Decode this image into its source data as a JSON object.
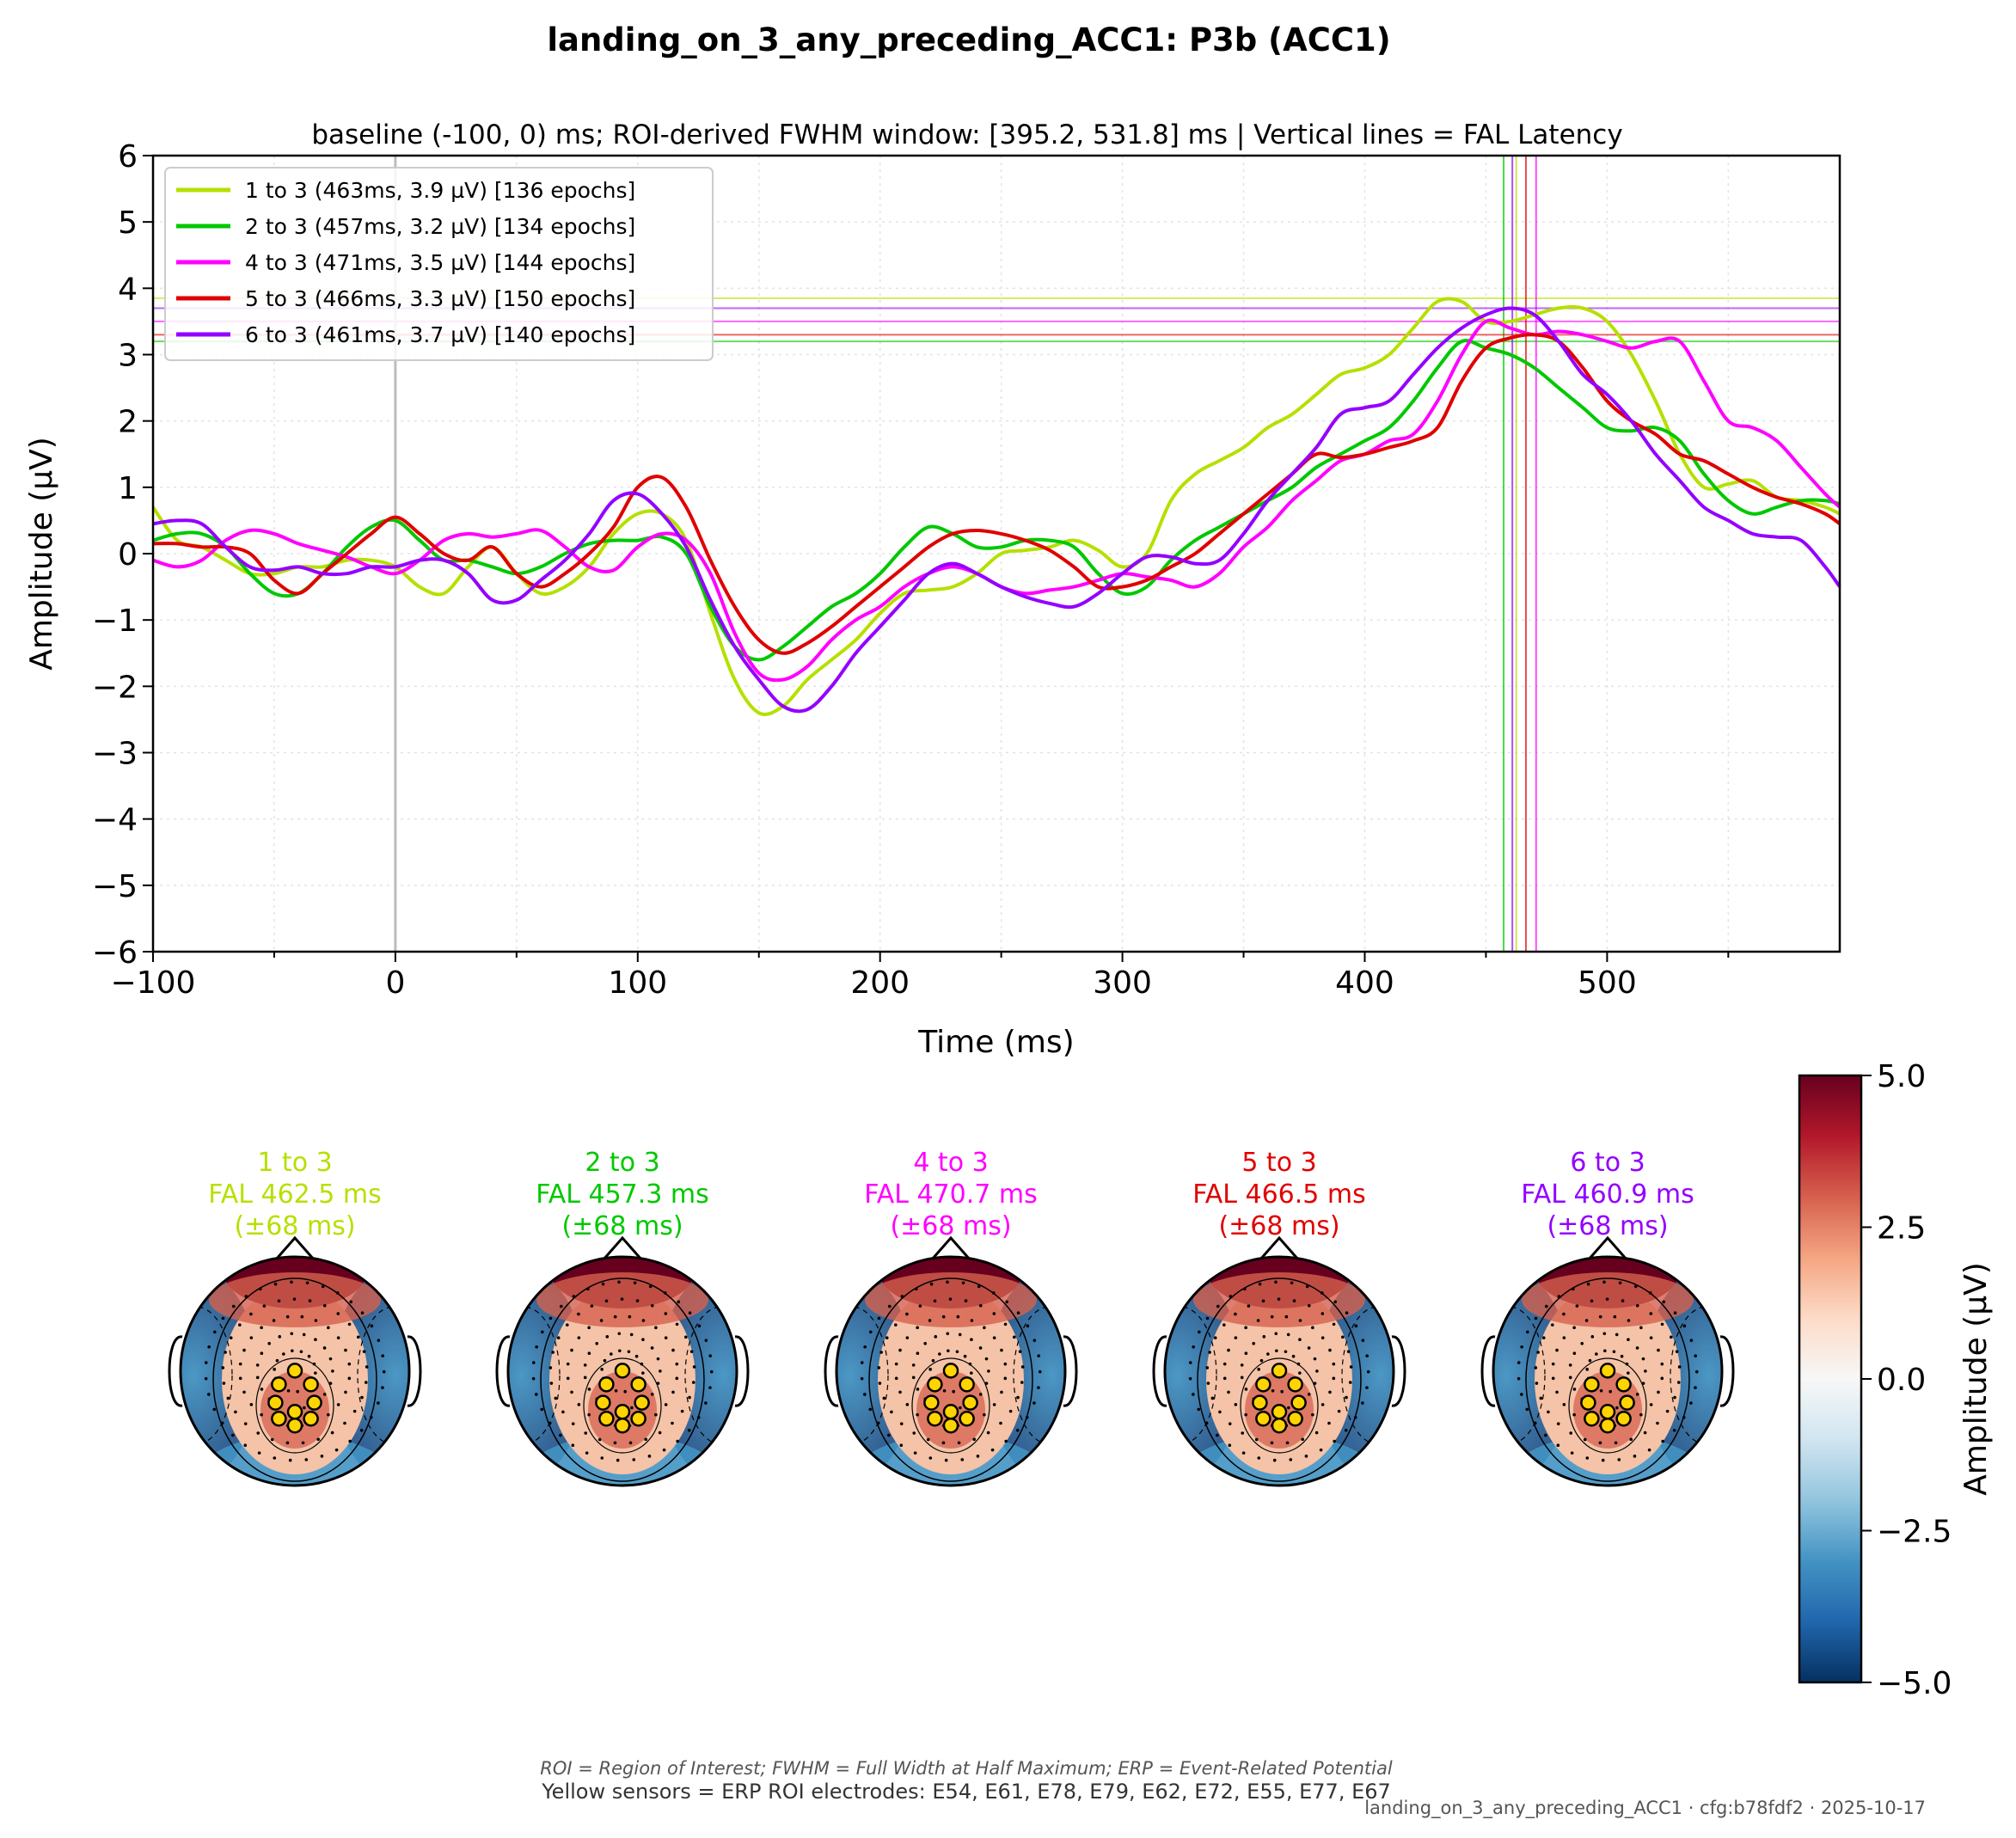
{
  "figure": {
    "title": "landing_on_3_any_preceding_ACC1: P3b (ACC1)",
    "footnote_italic": "ROI = Region of Interest; FWHM = Full Width at Half Maximum; ERP = Event-Related Potential",
    "footnote_sensors": "Yellow sensors = ERP ROI electrodes: E54, E61, E78, E79, E62, E72, E55, E77, E67",
    "stamp": "landing_on_3_any_preceding_ACC1 · cfg:b78fdf2 · 2025-10-17"
  },
  "chart_data": [
    {
      "type": "line",
      "subtitle": "baseline (-100, 0) ms; ROI-derived FWHM window: [395.2, 531.8] ms | Vertical lines = FAL Latency",
      "xlabel": "Time (ms)",
      "ylabel": "Amplitude (µV)",
      "xlim": [
        -100,
        596
      ],
      "ylim": [
        -6,
        6
      ],
      "xticks": [
        -100,
        0,
        100,
        200,
        300,
        400,
        500
      ],
      "xtick_labels": [
        "−100",
        "0",
        "100",
        "200",
        "300",
        "400",
        "500"
      ],
      "yticks": [
        -6,
        -5,
        -4,
        -3,
        -2,
        -1,
        0,
        1,
        2,
        3,
        4,
        5,
        6
      ],
      "ytick_labels": [
        "−6",
        "−5",
        "−4",
        "−3",
        "−2",
        "−1",
        "0",
        "1",
        "2",
        "3",
        "4",
        "5",
        "6"
      ],
      "grid": true,
      "legend_position": "top-left",
      "stimulus_onset_ms": 0,
      "x": [
        -100,
        -90,
        -80,
        -70,
        -60,
        -50,
        -40,
        -30,
        -20,
        -10,
        0,
        10,
        20,
        30,
        40,
        50,
        60,
        70,
        80,
        90,
        100,
        110,
        120,
        130,
        140,
        150,
        160,
        170,
        180,
        190,
        200,
        210,
        220,
        230,
        240,
        250,
        260,
        270,
        280,
        290,
        300,
        310,
        320,
        330,
        340,
        350,
        360,
        370,
        380,
        390,
        400,
        410,
        420,
        430,
        440,
        450,
        460,
        470,
        480,
        490,
        500,
        510,
        520,
        530,
        540,
        550,
        560,
        570,
        580,
        590,
        596
      ],
      "series": [
        {
          "name": "1 to 3 (463ms, 3.9 µV) [136 epochs]",
          "color": "#b5e000",
          "peak_latency_ms": 462.5,
          "peak_amplitude": 3.85,
          "values": [
            0.7,
            0.2,
            0.1,
            -0.1,
            -0.3,
            -0.3,
            -0.2,
            -0.2,
            -0.1,
            -0.1,
            -0.2,
            -0.5,
            -0.6,
            -0.2,
            0.1,
            -0.3,
            -0.6,
            -0.5,
            -0.2,
            0.3,
            0.6,
            0.6,
            0.2,
            -0.9,
            -1.9,
            -2.4,
            -2.3,
            -1.9,
            -1.6,
            -1.3,
            -0.9,
            -0.6,
            -0.55,
            -0.5,
            -0.3,
            0.0,
            0.05,
            0.1,
            0.2,
            0.05,
            -0.2,
            0.0,
            0.8,
            1.2,
            1.4,
            1.6,
            1.9,
            2.1,
            2.4,
            2.7,
            2.8,
            3.0,
            3.4,
            3.8,
            3.8,
            3.5,
            3.5,
            3.6,
            3.7,
            3.7,
            3.5,
            3.0,
            2.3,
            1.5,
            1.0,
            1.05,
            1.1,
            0.85,
            0.8,
            0.7,
            0.6
          ]
        },
        {
          "name": "2 to 3 (457ms, 3.2 µV) [134 epochs]",
          "color": "#00c800",
          "peak_latency_ms": 457.3,
          "peak_amplitude": 3.2,
          "values": [
            0.2,
            0.3,
            0.3,
            0.1,
            -0.3,
            -0.6,
            -0.6,
            -0.3,
            0.1,
            0.4,
            0.5,
            0.2,
            -0.1,
            -0.1,
            -0.2,
            -0.3,
            -0.2,
            0.0,
            0.15,
            0.2,
            0.2,
            0.25,
            0.0,
            -0.8,
            -1.4,
            -1.6,
            -1.4,
            -1.1,
            -0.8,
            -0.6,
            -0.3,
            0.1,
            0.4,
            0.3,
            0.1,
            0.1,
            0.2,
            0.2,
            0.1,
            -0.3,
            -0.6,
            -0.5,
            -0.1,
            0.2,
            0.4,
            0.6,
            0.8,
            1.0,
            1.3,
            1.5,
            1.7,
            1.9,
            2.3,
            2.8,
            3.2,
            3.1,
            3.0,
            2.8,
            2.5,
            2.2,
            1.9,
            1.85,
            1.9,
            1.7,
            1.2,
            0.8,
            0.6,
            0.7,
            0.8,
            0.8,
            0.75
          ]
        },
        {
          "name": "4 to 3 (471ms, 3.5 µV) [144 epochs]",
          "color": "#ff00ff",
          "peak_latency_ms": 470.7,
          "peak_amplitude": 3.5,
          "values": [
            -0.1,
            -0.2,
            -0.1,
            0.2,
            0.35,
            0.3,
            0.15,
            0.05,
            -0.05,
            -0.2,
            -0.3,
            -0.1,
            0.2,
            0.3,
            0.25,
            0.3,
            0.35,
            0.1,
            -0.2,
            -0.25,
            0.1,
            0.3,
            0.2,
            -0.3,
            -1.2,
            -1.8,
            -1.9,
            -1.7,
            -1.3,
            -1.0,
            -0.8,
            -0.5,
            -0.3,
            -0.2,
            -0.3,
            -0.5,
            -0.6,
            -0.55,
            -0.5,
            -0.4,
            -0.3,
            -0.35,
            -0.4,
            -0.5,
            -0.3,
            0.1,
            0.4,
            0.8,
            1.1,
            1.4,
            1.5,
            1.7,
            1.8,
            2.3,
            3.0,
            3.5,
            3.4,
            3.3,
            3.35,
            3.3,
            3.2,
            3.1,
            3.2,
            3.2,
            2.6,
            2.0,
            1.9,
            1.7,
            1.3,
            0.9,
            0.7
          ]
        },
        {
          "name": "5 to 3 (466ms, 3.3 µV) [150 epochs]",
          "color": "#e00000",
          "peak_latency_ms": 466.5,
          "peak_amplitude": 3.3,
          "values": [
            0.15,
            0.15,
            0.1,
            0.1,
            0.0,
            -0.4,
            -0.6,
            -0.3,
            0.0,
            0.3,
            0.55,
            0.3,
            0.0,
            -0.1,
            0.1,
            -0.3,
            -0.5,
            -0.3,
            0.0,
            0.4,
            1.0,
            1.15,
            0.7,
            -0.1,
            -0.8,
            -1.3,
            -1.5,
            -1.35,
            -1.1,
            -0.8,
            -0.5,
            -0.2,
            0.1,
            0.3,
            0.35,
            0.3,
            0.2,
            0.05,
            -0.2,
            -0.5,
            -0.5,
            -0.4,
            -0.2,
            0.0,
            0.3,
            0.6,
            0.9,
            1.2,
            1.5,
            1.45,
            1.5,
            1.6,
            1.7,
            1.9,
            2.6,
            3.1,
            3.25,
            3.3,
            3.2,
            2.8,
            2.3,
            2.0,
            1.8,
            1.5,
            1.4,
            1.2,
            1.0,
            0.85,
            0.75,
            0.6,
            0.45
          ]
        },
        {
          "name": "6 to 3 (461ms, 3.7 µV) [140 epochs]",
          "color": "#9400ff",
          "peak_latency_ms": 460.9,
          "peak_amplitude": 3.7,
          "values": [
            0.45,
            0.5,
            0.45,
            0.1,
            -0.2,
            -0.25,
            -0.2,
            -0.3,
            -0.3,
            -0.2,
            -0.2,
            -0.1,
            -0.1,
            -0.3,
            -0.7,
            -0.7,
            -0.4,
            -0.1,
            0.3,
            0.8,
            0.9,
            0.6,
            0.1,
            -0.7,
            -1.4,
            -1.9,
            -2.3,
            -2.35,
            -2.0,
            -1.5,
            -1.1,
            -0.7,
            -0.3,
            -0.15,
            -0.3,
            -0.5,
            -0.65,
            -0.75,
            -0.8,
            -0.6,
            -0.3,
            -0.05,
            -0.05,
            -0.15,
            -0.1,
            0.3,
            0.8,
            1.2,
            1.6,
            2.1,
            2.2,
            2.3,
            2.7,
            3.1,
            3.4,
            3.6,
            3.7,
            3.6,
            3.2,
            2.7,
            2.4,
            2.0,
            1.5,
            1.1,
            0.7,
            0.5,
            0.3,
            0.25,
            0.2,
            -0.2,
            -0.5
          ]
        }
      ]
    },
    {
      "type": "heatmap",
      "colorbar_label": "Amplitude (µV)",
      "colorbar_range": [
        -5,
        5
      ],
      "colorbar_ticks": [
        5,
        2.5,
        0,
        -2.5,
        -5
      ],
      "colorbar_tick_labels": [
        "5.0",
        "2.5",
        "0.0",
        "−2.5",
        "−5.0"
      ],
      "colormap": [
        "#67001f",
        "#b2182b",
        "#d6604d",
        "#f4a582",
        "#fddbc7",
        "#f7f7f7",
        "#d1e5f0",
        "#92c5de",
        "#4393c3",
        "#2166ac",
        "#053061"
      ],
      "topomaps": [
        {
          "label": "1 to 3",
          "fal": "FAL 462.5 ms",
          "window": "(±68 ms)",
          "color": "#b5e000"
        },
        {
          "label": "2 to 3",
          "fal": "FAL 457.3 ms",
          "window": "(±68 ms)",
          "color": "#00c800"
        },
        {
          "label": "4 to 3",
          "fal": "FAL 470.7 ms",
          "window": "(±68 ms)",
          "color": "#ff00ff"
        },
        {
          "label": "5 to 3",
          "fal": "FAL 466.5 ms",
          "window": "(±68 ms)",
          "color": "#e00000"
        },
        {
          "label": "6 to 3",
          "fal": "FAL 460.9 ms",
          "window": "(±68 ms)",
          "color": "#9400ff"
        }
      ]
    }
  ]
}
